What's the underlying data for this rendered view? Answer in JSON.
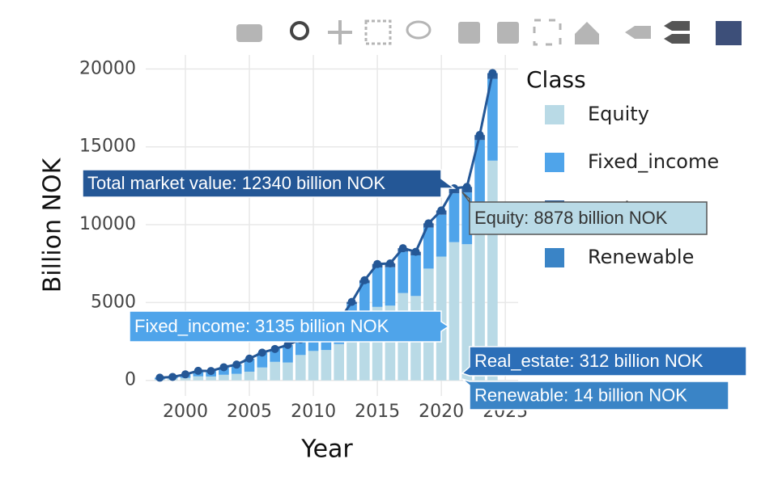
{
  "chart_data": {
    "type": "bar",
    "barmode": "stack",
    "x_title": "Year",
    "y_title": "Billion NOK",
    "legend_title": "Class",
    "x": [
      1998,
      1999,
      2000,
      2001,
      2002,
      2003,
      2004,
      2005,
      2006,
      2007,
      2008,
      2009,
      2010,
      2011,
      2012,
      2013,
      2014,
      2015,
      2016,
      2017,
      2018,
      2019,
      2020,
      2021,
      2022,
      2023,
      2024
    ],
    "xlim": [
      1996.9,
      2026
    ],
    "xticks": [
      2000,
      2005,
      2010,
      2015,
      2020,
      2025
    ],
    "ylim": [
      -1000,
      20900
    ],
    "yticks": [
      0,
      5000,
      10000,
      15000,
      20000
    ],
    "grid": true,
    "series": [
      {
        "name": "Equity",
        "color": "#b9dae6",
        "values": [
          70,
          135,
          160,
          260,
          250,
          360,
          420,
          560,
          830,
          1190,
          1150,
          1630,
          1890,
          1950,
          2335,
          3085,
          3940,
          4720,
          4800,
          5610,
          5420,
          7180,
          7950,
          8878,
          8746,
          11203,
          14112
        ]
      },
      {
        "name": "Fixed_income",
        "color": "#4fa4ea",
        "values": [
          102,
          87,
          226,
          354,
          354,
          485,
          596,
          839,
          954,
          829,
          1125,
          1010,
          1187,
          1339,
          1423,
          1819,
          2303,
          2530,
          2468,
          2660,
          2611,
          2636,
          2690,
          3135,
          3326,
          4232,
          5255
        ]
      },
      {
        "name": "Real_estate",
        "color": "#2c5e9c",
        "values": [
          null,
          null,
          null,
          null,
          null,
          null,
          null,
          null,
          null,
          null,
          null,
          null,
          null,
          23,
          58,
          134,
          188,
          225,
          242,
          218,
          225,
          272,
          274,
          312,
          341,
          311,
          353
        ]
      },
      {
        "name": "Renewable",
        "color": "#3a84c6",
        "values": [
          null,
          null,
          null,
          null,
          null,
          null,
          null,
          null,
          null,
          null,
          null,
          null,
          null,
          null,
          null,
          null,
          null,
          null,
          null,
          null,
          null,
          null,
          null,
          14,
          16,
          19,
          22
        ]
      },
      {
        "type": "line",
        "showlegend": false,
        "color": "#245796",
        "values": [
          172,
          222,
          386,
          614,
          604,
          845,
          1016,
          1399,
          1784,
          2019,
          2275,
          2640,
          3077,
          3312,
          3816,
          5038,
          6431,
          7475,
          7510,
          8488,
          8256,
          10088,
          10914,
          12340,
          12429,
          15765,
          19742
        ]
      }
    ],
    "hover_labels": [
      {
        "text": "Total market value: 12340 billion NOK",
        "color": "#245796",
        "text_color": "#ffffff"
      },
      {
        "text": "Equity: 8878 billion NOK",
        "color": "#b9dae6",
        "text_color": "#333333"
      },
      {
        "text": "Fixed_income: 3135 billion NOK",
        "color": "#4fa4ea",
        "text_color": "#ffffff"
      },
      {
        "text": "Real_estate: 312 billion NOK",
        "color": "#2c6fb8",
        "text_color": "#ffffff"
      },
      {
        "text": "Renewable: 14 billion NOK",
        "color": "#3a84c6",
        "text_color": "#ffffff"
      }
    ]
  }
}
